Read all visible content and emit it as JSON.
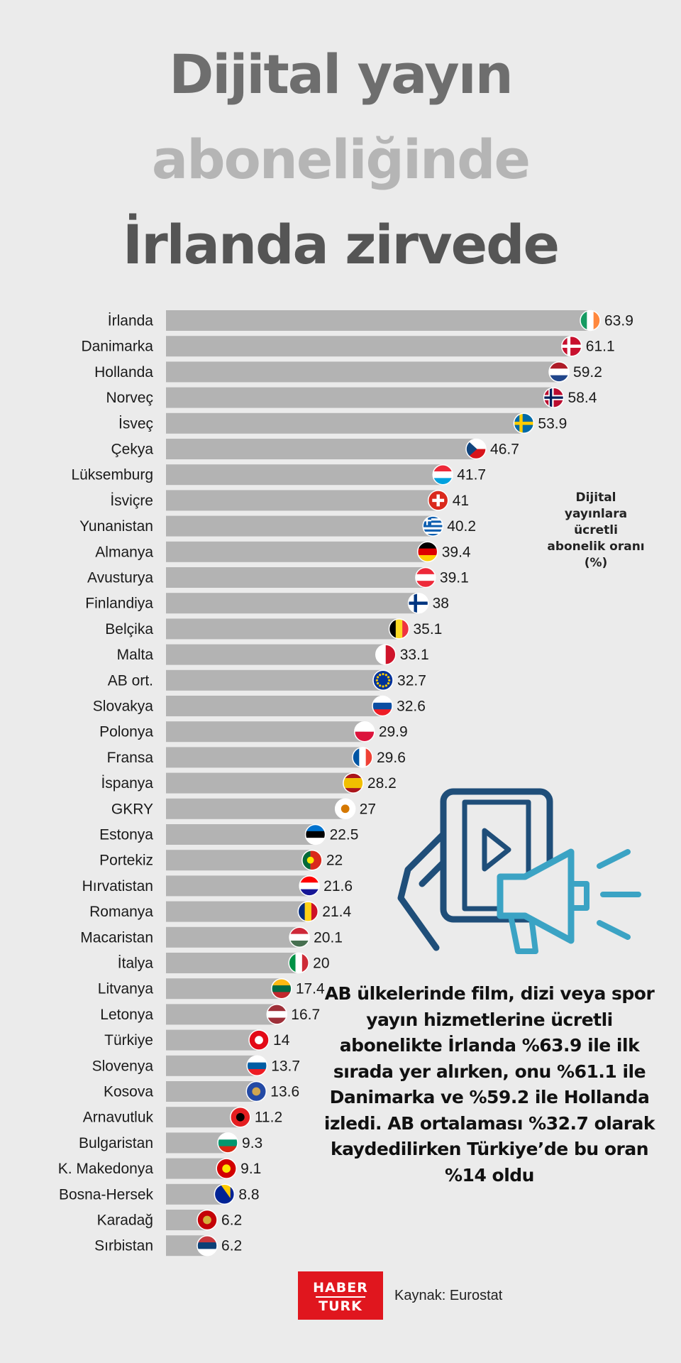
{
  "title": {
    "line1": "Dijital yayın",
    "line2": "aboneliğinde",
    "line3": "İrlanda zirvede"
  },
  "legend_label": "Dijital yayınlara ücretli abonelik oranı (%)",
  "summary": "AB ülkelerinde film, dizi veya spor yayın hizmetlerine ücretli abonelikte İrlanda %63.9 ile ilk sırada yer alırken, onu %61.1 ile Danimarka ve %59.2 ile Hollanda izledi. AB ortalaması %32.7 olarak kaydedilirken Türkiye’de bu oran %14 oldu",
  "logo": {
    "line1": "HABER",
    "line2": "TURK"
  },
  "source": "Kaynak: Eurostat",
  "colors": {
    "bar": "#b3b3b3",
    "background": "#ebebeb",
    "logo": "#e0161e",
    "icon_dark": "#1f4e79",
    "icon_light": "#3ba3c4"
  },
  "chart_data": {
    "type": "bar",
    "orientation": "horizontal",
    "title": "",
    "xlabel": "",
    "ylabel": "",
    "xlim": [
      0,
      65
    ],
    "grid": false,
    "categories": [
      "İrlanda",
      "Danimarka",
      "Hollanda",
      "Norveç",
      "İsveç",
      "Çekya",
      "Lüksemburg",
      "İsviçre",
      "Yunanistan",
      "Almanya",
      "Avusturya",
      "Finlandiya",
      "Belçika",
      "Malta",
      "AB ort.",
      "Slovakya",
      "Polonya",
      "Fransa",
      "İspanya",
      "GKRY",
      "Estonya",
      "Portekiz",
      "Hırvatistan",
      "Romanya",
      "Macaristan",
      "İtalya",
      "Litvanya",
      "Letonya",
      "Türkiye",
      "Slovenya",
      "Kosova",
      "Arnavutluk",
      "Bulgaristan",
      "K. Makedonya",
      "Bosna-Hersek",
      "Karadağ",
      "Sırbistan"
    ],
    "values": [
      63.9,
      61.1,
      59.2,
      58.4,
      53.9,
      46.7,
      41.7,
      41,
      40.2,
      39.4,
      39.1,
      38,
      35.1,
      33.1,
      32.7,
      32.6,
      29.9,
      29.6,
      28.2,
      27,
      22.5,
      22,
      21.6,
      21.4,
      20.1,
      20,
      17.4,
      16.7,
      14,
      13.7,
      13.6,
      11.2,
      9.3,
      9.1,
      8.8,
      6.2,
      6.2
    ],
    "value_labels": [
      "63.9",
      "61.1",
      "59.2",
      "58.4",
      "53.9",
      "46.7",
      "41.7",
      "41",
      "40.2",
      "39.4",
      "39.1",
      "38",
      "35.1",
      "33.1",
      "32.7",
      "32.6",
      "29.9",
      "29.6",
      "28.2",
      "27",
      "22.5",
      "22",
      "21.6",
      "21.4",
      "20.1",
      "20",
      "17.4",
      "16.7",
      "14",
      "13.7",
      "13.6",
      "11.2",
      "9.3",
      "9.1",
      "8.8",
      "6.2",
      "6.2"
    ],
    "flags": [
      "ireland-flag-icon",
      "denmark-flag-icon",
      "netherlands-flag-icon",
      "norway-flag-icon",
      "sweden-flag-icon",
      "czechia-flag-icon",
      "luxembourg-flag-icon",
      "switzerland-flag-icon",
      "greece-flag-icon",
      "germany-flag-icon",
      "austria-flag-icon",
      "finland-flag-icon",
      "belgium-flag-icon",
      "malta-flag-icon",
      "eu-flag-icon",
      "slovakia-flag-icon",
      "poland-flag-icon",
      "france-flag-icon",
      "spain-flag-icon",
      "cyprus-flag-icon",
      "estonia-flag-icon",
      "portugal-flag-icon",
      "croatia-flag-icon",
      "romania-flag-icon",
      "hungary-flag-icon",
      "italy-flag-icon",
      "lithuania-flag-icon",
      "latvia-flag-icon",
      "turkey-flag-icon",
      "slovenia-flag-icon",
      "kosovo-flag-icon",
      "albania-flag-icon",
      "bulgaria-flag-icon",
      "north-macedonia-flag-icon",
      "bosnia-flag-icon",
      "montenegro-flag-icon",
      "serbia-flag-icon"
    ]
  }
}
